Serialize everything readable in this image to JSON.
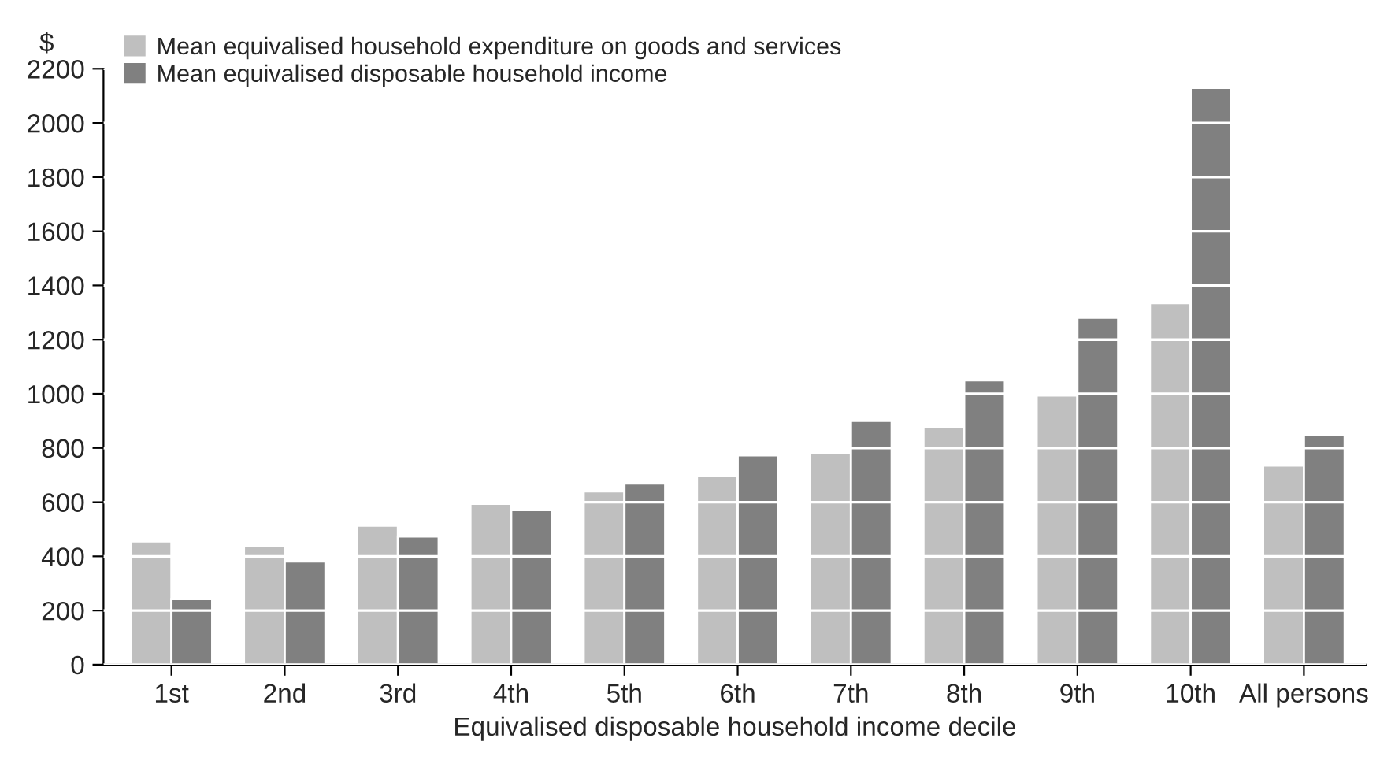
{
  "chart_data": {
    "type": "bar",
    "ylabel": "$",
    "xlabel": "Equivalised disposable household income decile",
    "categories": [
      "1st",
      "2nd",
      "3rd",
      "4th",
      "5th",
      "6th",
      "7th",
      "8th",
      "9th",
      "10th",
      "All persons"
    ],
    "series": [
      {
        "name": "Mean equivalised household expenditure on goods and services",
        "color": "#bfbfbf",
        "values": [
          455,
          437,
          513,
          594,
          640,
          698,
          781,
          877,
          994,
          1335,
          735
        ]
      },
      {
        "name": "Mean equivalised disposable household income",
        "color": "#808080",
        "values": [
          242,
          381,
          473,
          571,
          669,
          773,
          900,
          1050,
          1281,
          2129,
          848
        ]
      }
    ],
    "ylim": [
      0,
      2200
    ],
    "yticks": [
      0,
      200,
      400,
      600,
      800,
      1000,
      1200,
      1400,
      1600,
      1800,
      2000,
      2200
    ],
    "grid": "y",
    "legend": "top left"
  }
}
